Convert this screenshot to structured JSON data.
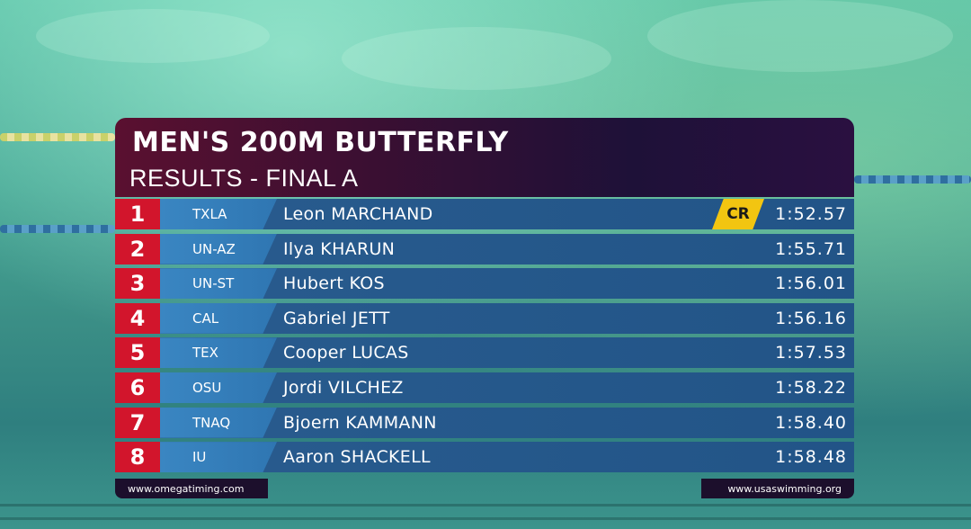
{
  "header": {
    "title": "MEN'S 200M BUTTERFLY",
    "subtitle": "RESULTS - FINAL A"
  },
  "results": [
    {
      "rank": "1",
      "team": "TXLA",
      "name": "Leon MARCHAND",
      "time": "1:52.57",
      "record": "CR"
    },
    {
      "rank": "2",
      "team": "UN-AZ",
      "name": "Ilya KHARUN",
      "time": "1:55.71",
      "record": ""
    },
    {
      "rank": "3",
      "team": "UN-ST",
      "name": "Hubert KOS",
      "time": "1:56.01",
      "record": ""
    },
    {
      "rank": "4",
      "team": "CAL",
      "name": "Gabriel JETT",
      "time": "1:56.16",
      "record": ""
    },
    {
      "rank": "5",
      "team": "TEX",
      "name": "Cooper LUCAS",
      "time": "1:57.53",
      "record": ""
    },
    {
      "rank": "6",
      "team": "OSU",
      "name": "Jordi VILCHEZ",
      "time": "1:58.22",
      "record": ""
    },
    {
      "rank": "7",
      "team": "TNAQ",
      "name": "Bjoern KAMMANN",
      "time": "1:58.40",
      "record": ""
    },
    {
      "rank": "8",
      "team": "IU",
      "name": "Aaron SHACKELL",
      "time": "1:58.48",
      "record": ""
    }
  ],
  "footer": {
    "left": "www.omegatiming.com",
    "right": "www.usaswimming.org"
  },
  "colors": {
    "rank_bg": "#d2152c",
    "record_bg": "#f2c511",
    "header_bg": "#3a0f32",
    "row_bg": "#26598c"
  }
}
